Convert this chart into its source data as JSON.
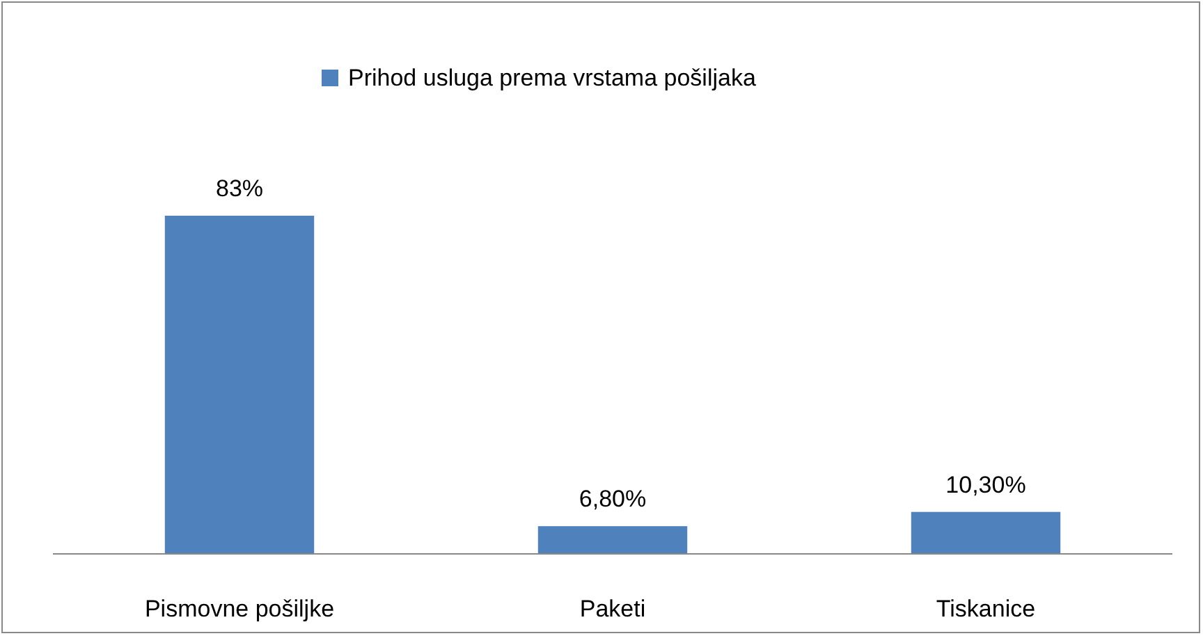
{
  "chart_data": {
    "type": "bar",
    "categories": [
      "Pismovne pošiljke",
      "Paketi",
      "Tiskanice"
    ],
    "series": [
      {
        "name": "Prihod usluga prema vrstama pošiljaka",
        "color": "#4f81bd",
        "values": [
          83,
          6.8,
          10.3
        ],
        "value_labels": [
          "83%",
          "6,80%",
          "10,30%"
        ]
      }
    ],
    "legend": "top"
  }
}
